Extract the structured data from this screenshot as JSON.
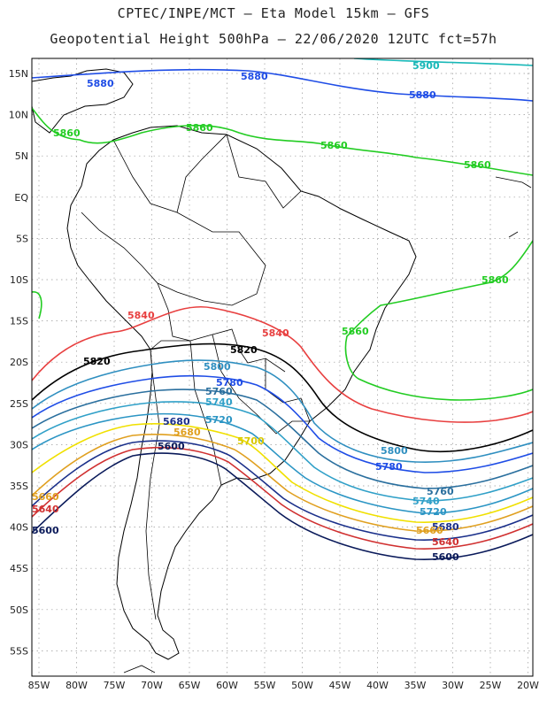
{
  "title_line1": "CPTEC/INPE/MCT –  Eta Model 15km – GFS",
  "title_line2": "Geopotential Height 500hPa – 22/06/2020 12UTC fct=57h",
  "lat_ticks": [
    "15N",
    "10N",
    "5N",
    "EQ",
    "5S",
    "10S",
    "15S",
    "20S",
    "25S",
    "30S",
    "35S",
    "40S",
    "45S",
    "50S",
    "55S"
  ],
  "lon_ticks": [
    "85W",
    "80W",
    "75W",
    "70W",
    "65W",
    "60W",
    "55W",
    "50W",
    "45W",
    "40W",
    "35W",
    "30W",
    "25W",
    "20W"
  ],
  "contours": [
    {
      "value": "5900",
      "color": "#18b8b8"
    },
    {
      "value": "5880",
      "color": "#1f4de6"
    },
    {
      "value": "5860",
      "color": "#22cc22"
    },
    {
      "value": "5840",
      "color": "#e84040"
    },
    {
      "value": "5820",
      "color": "#000000"
    },
    {
      "value": "5800",
      "color": "#2f8fc0"
    },
    {
      "value": "5780",
      "color": "#1f4de6"
    },
    {
      "value": "5760",
      "color": "#2a6f9e"
    },
    {
      "value": "5740",
      "color": "#30a0c8"
    },
    {
      "value": "5720",
      "color": "#2b95c4"
    },
    {
      "value": "5700",
      "color": "#f0e000"
    },
    {
      "value": "5680",
      "color": "#e0a020"
    },
    {
      "value": "5660",
      "color": "#1a2f8a"
    },
    {
      "value": "5640",
      "color": "#d03030"
    },
    {
      "value": "5600",
      "color": "#0a1a5a"
    }
  ],
  "labels": [
    {
      "text": "5900",
      "color": "#18b8b8"
    },
    {
      "text": "5880",
      "color": "#1f4de6"
    },
    {
      "text": "5880",
      "color": "#1f4de6"
    },
    {
      "text": "5880",
      "color": "#1f4de6"
    },
    {
      "text": "5860",
      "color": "#22cc22"
    },
    {
      "text": "5860",
      "color": "#22cc22"
    },
    {
      "text": "5860",
      "color": "#22cc22"
    },
    {
      "text": "5860",
      "color": "#22cc22"
    },
    {
      "text": "5860",
      "color": "#22cc22"
    },
    {
      "text": "5860",
      "color": "#22cc22"
    },
    {
      "text": "5840",
      "color": "#e84040"
    },
    {
      "text": "5840",
      "color": "#e84040"
    },
    {
      "text": "5820",
      "color": "#000000"
    },
    {
      "text": "5820",
      "color": "#000000"
    },
    {
      "text": "5800",
      "color": "#2f8fc0"
    },
    {
      "text": "5800",
      "color": "#2f8fc0"
    },
    {
      "text": "5780",
      "color": "#1f4de6"
    },
    {
      "text": "5780",
      "color": "#1f4de6"
    },
    {
      "text": "5760",
      "color": "#2a6f9e"
    },
    {
      "text": "5760",
      "color": "#2a6f9e"
    },
    {
      "text": "5740",
      "color": "#30a0c8"
    },
    {
      "text": "5740",
      "color": "#30a0c8"
    },
    {
      "text": "5720",
      "color": "#2b95c4"
    },
    {
      "text": "5720",
      "color": "#2b95c4"
    },
    {
      "text": "5700",
      "color": "#d8c800"
    },
    {
      "text": "5680",
      "color": "#e0a020"
    },
    {
      "text": "5680",
      "color": "#1a2f8a"
    },
    {
      "text": "5680",
      "color": "#1a2f8a"
    },
    {
      "text": "5660",
      "color": "#e0a020"
    },
    {
      "text": "5660",
      "color": "#e0a020"
    },
    {
      "text": "5640",
      "color": "#d03030"
    },
    {
      "text": "5640",
      "color": "#d03030"
    },
    {
      "text": "5600",
      "color": "#0a1a5a"
    },
    {
      "text": "5600",
      "color": "#0a1a5a"
    },
    {
      "text": "5600",
      "color": "#0a1a5a"
    }
  ]
}
